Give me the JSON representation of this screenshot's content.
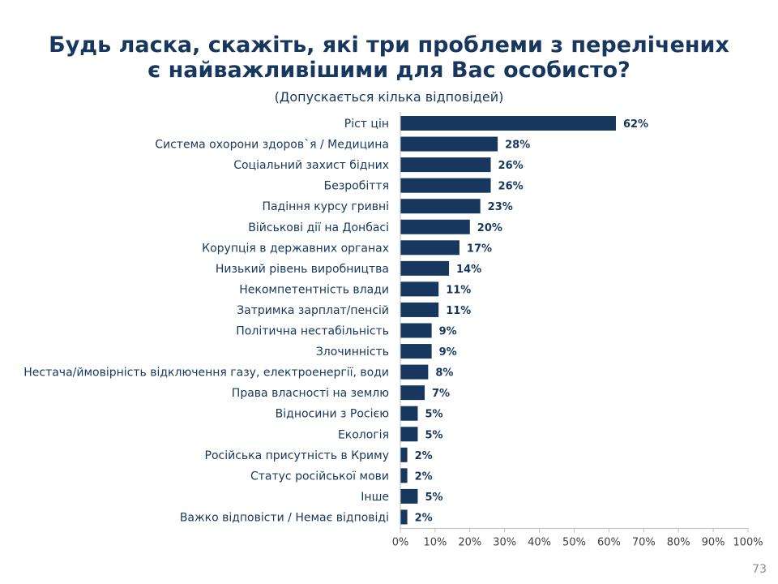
{
  "slide": {
    "title": "Будь ласка, скажіть, які три проблеми з перелічених є найважливішими для Вас особисто?",
    "subtitle": "(Допускається кілька відповідей)",
    "page_number": "73"
  },
  "colors": {
    "bar": "#17375e",
    "text": "#17375e",
    "axis": "#bfbfbf"
  },
  "chart_data": {
    "type": "bar",
    "orientation": "horizontal",
    "categories": [
      "Ріст цін",
      "Система охорони здоров`я / Медицина",
      "Соціальний захист бідних",
      "Безробіття",
      "Падіння курсу гривні",
      "Військові дії на Донбасі",
      "Корупція в державних органах",
      "Низький рівень виробництва",
      "Некомпетентність влади",
      "Затримка зарплат/пенсій",
      "Політична нестабільність",
      "Злочинність",
      "Нестача/ймовірність відключення газу, електроенергії, води",
      "Права власності на землю",
      "Відносини з Росією",
      "Екологія",
      "Російська присутність в Криму",
      "Статус російської мови",
      "Інше",
      "Важко відповісти / Немає відповіді"
    ],
    "values": [
      62,
      28,
      26,
      26,
      23,
      20,
      17,
      14,
      11,
      11,
      9,
      9,
      8,
      7,
      5,
      5,
      2,
      2,
      5,
      2
    ],
    "value_labels": [
      "62%",
      "28%",
      "26%",
      "26%",
      "23%",
      "20%",
      "17%",
      "14%",
      "11%",
      "11%",
      "9%",
      "9%",
      "8%",
      "7%",
      "5%",
      "5%",
      "2%",
      "2%",
      "5%",
      "2%"
    ],
    "x_ticks": [
      "0%",
      "10%",
      "20%",
      "30%",
      "40%",
      "50%",
      "60%",
      "70%",
      "80%",
      "90%",
      "100%"
    ],
    "xlim": [
      0,
      100
    ],
    "grid": false,
    "legend": "none"
  }
}
